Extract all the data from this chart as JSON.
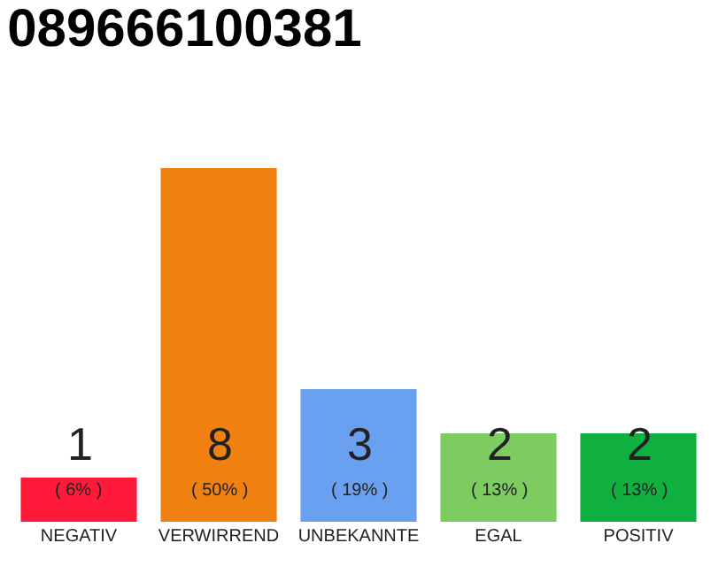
{
  "chart_data": {
    "type": "bar",
    "title": "089666100381",
    "categories": [
      "NEGATIV",
      "VERWIRREND",
      "UNBEKANNTE",
      "EGAL",
      "POSITIV"
    ],
    "values": [
      1,
      8,
      3,
      2,
      2
    ],
    "colors": [
      "#ff1a3a",
      "#f08010",
      "#6aa0f0",
      "#7ccc60",
      "#10b040"
    ],
    "data_labels": true,
    "annotations": [
      "( 6% )",
      "( 50% )",
      "( 19% )",
      "( 13% )",
      "( 13% )"
    ],
    "ylim": [
      0,
      8
    ],
    "tick_labels": "x"
  }
}
